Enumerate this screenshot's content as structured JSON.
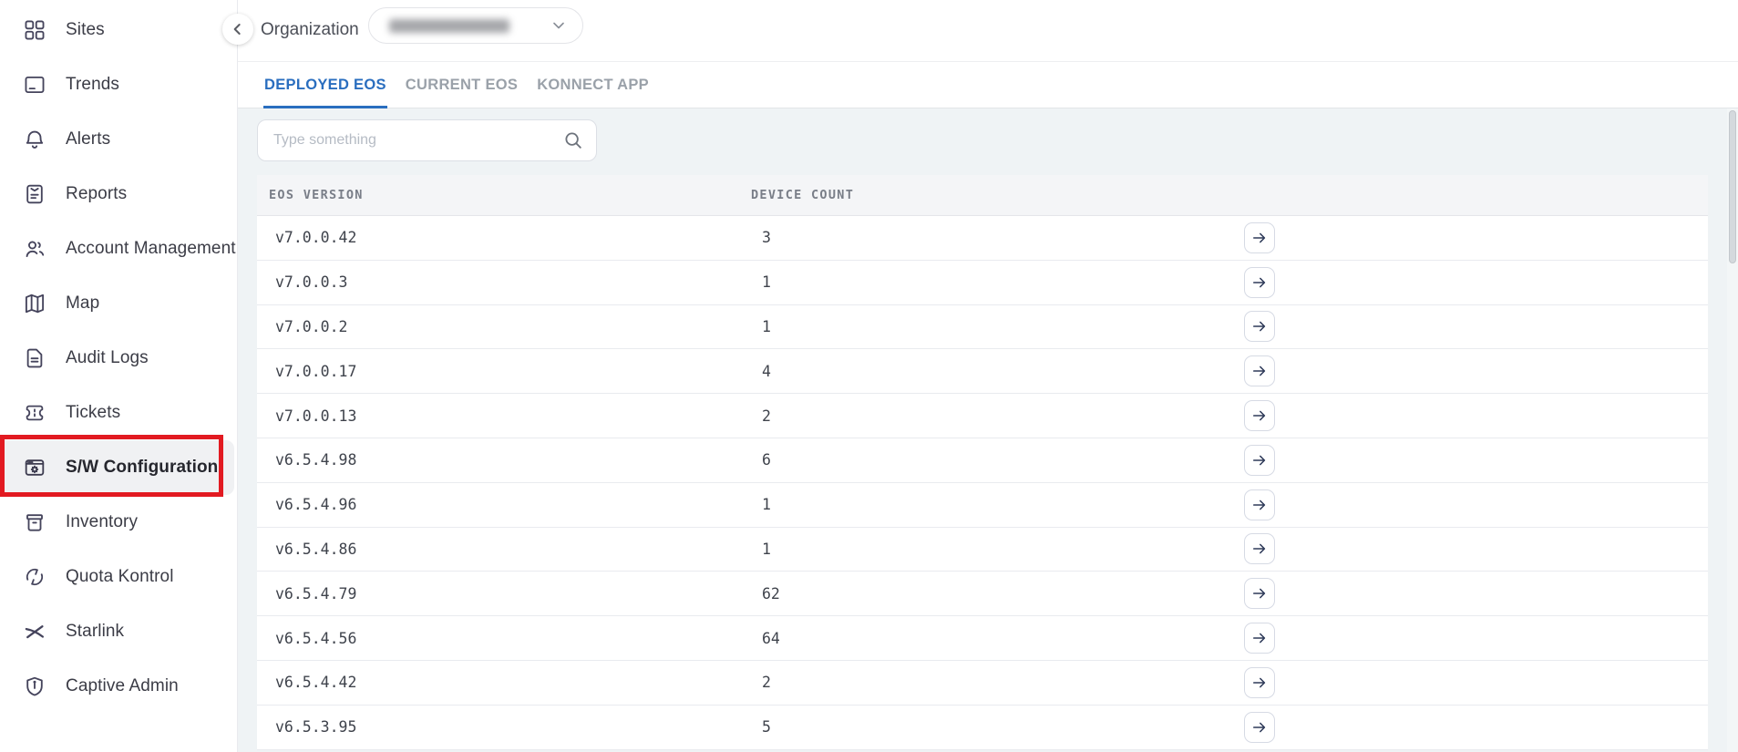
{
  "sidebar": {
    "items": [
      {
        "label": "Sites",
        "icon": "grid"
      },
      {
        "label": "Trends",
        "icon": "monitor"
      },
      {
        "label": "Alerts",
        "icon": "bell"
      },
      {
        "label": "Reports",
        "icon": "report"
      },
      {
        "label": "Account Management",
        "icon": "users"
      },
      {
        "label": "Map",
        "icon": "map"
      },
      {
        "label": "Audit Logs",
        "icon": "document"
      },
      {
        "label": "Tickets",
        "icon": "ticket"
      },
      {
        "label": "S/W Configuration",
        "icon": "window-gear",
        "selected": true,
        "annotated": true
      },
      {
        "label": "Inventory",
        "icon": "box"
      },
      {
        "label": "Quota Kontrol",
        "icon": "quota"
      },
      {
        "label": "Starlink",
        "icon": "starlink"
      },
      {
        "label": "Captive Admin",
        "icon": "shield"
      }
    ]
  },
  "header": {
    "organization_label": "Organization",
    "organization_dropdown": {
      "value": "",
      "redacted": true
    },
    "back_icon": "chevron-left"
  },
  "tabs": [
    {
      "label": "DEPLOYED EOS",
      "active": true
    },
    {
      "label": "CURRENT EOS",
      "active": false
    },
    {
      "label": "KONNECT APP",
      "active": false
    }
  ],
  "search": {
    "placeholder": "Type something",
    "icon": "magnifier"
  },
  "table": {
    "columns": [
      "EOS VERSION",
      "DEVICE COUNT"
    ],
    "row_action_icon": "arrow-right",
    "rows": [
      {
        "version": "v7.0.0.42",
        "count": "3"
      },
      {
        "version": "v7.0.0.3",
        "count": "1"
      },
      {
        "version": "v7.0.0.2",
        "count": "1"
      },
      {
        "version": "v7.0.0.17",
        "count": "4"
      },
      {
        "version": "v7.0.0.13",
        "count": "2"
      },
      {
        "version": "v6.5.4.98",
        "count": "6"
      },
      {
        "version": "v6.5.4.96",
        "count": "1"
      },
      {
        "version": "v6.5.4.86",
        "count": "1"
      },
      {
        "version": "v6.5.4.79",
        "count": "62"
      },
      {
        "version": "v6.5.4.56",
        "count": "64"
      },
      {
        "version": "v6.5.4.42",
        "count": "2"
      },
      {
        "version": "v6.5.3.95",
        "count": "5"
      }
    ]
  },
  "colors": {
    "accent_blue": "#2a6ebf",
    "annotation_red": "#e21a21",
    "content_background": "#eff3f5",
    "table_header_background": "#f4f5f7",
    "selected_item_background": "#f0f1f3",
    "sidebar_text": "#3b3c46",
    "inactive_tab": "#9aa1a9"
  }
}
